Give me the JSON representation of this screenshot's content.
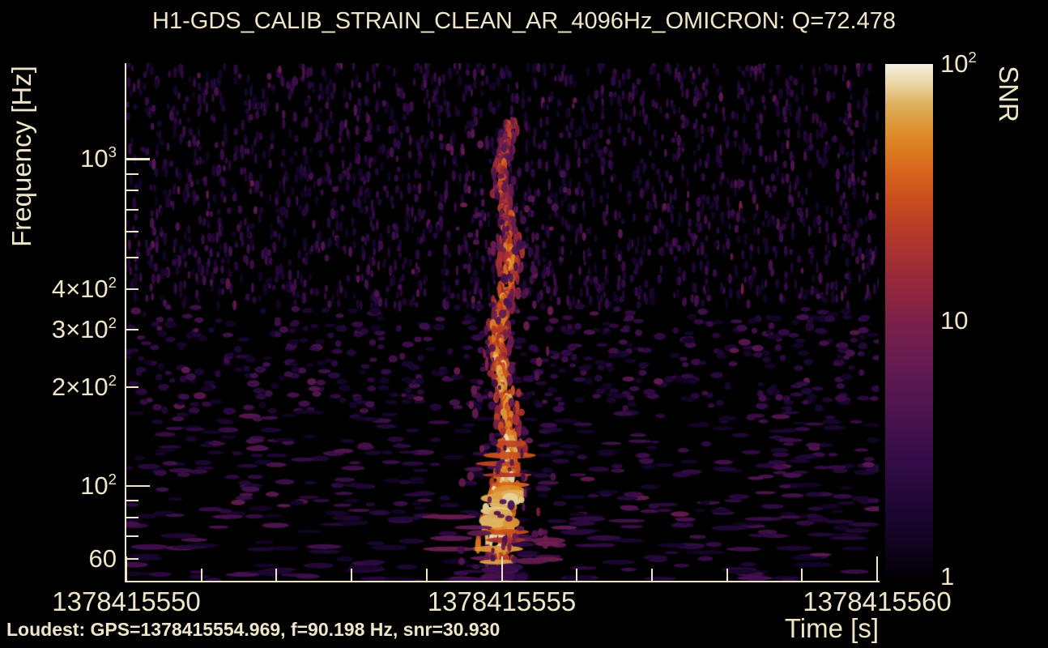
{
  "title": "H1-GDS_CALIB_STRAIN_CLEAN_AR_4096Hz_OMICRON: Q=72.478",
  "colors": {
    "background": "#000000",
    "text": "#efe5c9",
    "axis": "#efe5c9",
    "colorbar_tick": "#000000"
  },
  "axes": {
    "x": {
      "label": "Time [s]",
      "range": [
        1378415550,
        1378415560
      ],
      "major_tick_values": [
        1378415550,
        1378415555,
        1378415560
      ],
      "major_tick_labels": [
        "1378415550",
        "1378415555",
        "1378415560"
      ],
      "minor_tick_step_s": 1
    },
    "y": {
      "label": "Frequency [Hz]",
      "scale": "log",
      "range_hz": [
        51,
        1963
      ],
      "major_ticks": [
        {
          "value": 1000,
          "base": "10",
          "sup": "3"
        },
        {
          "value": 100,
          "base": "10",
          "sup": "2"
        }
      ],
      "labeled_minor_ticks": [
        {
          "value": 400,
          "base": "4×10",
          "sup": "2"
        },
        {
          "value": 300,
          "base": "3×10",
          "sup": "2"
        },
        {
          "value": 200,
          "base": "2×10",
          "sup": "2"
        },
        {
          "value": 60,
          "base": "60",
          "sup": ""
        }
      ],
      "minor_tick_values": [
        900,
        800,
        700,
        600,
        500,
        90,
        80,
        70
      ]
    },
    "colorbar": {
      "label": "SNR",
      "scale": "log",
      "range": [
        1,
        100
      ],
      "tick_labels": [
        {
          "value": 100,
          "base": "10",
          "sup": "2"
        },
        {
          "value": 10,
          "base": "10",
          "sup": ""
        },
        {
          "value": 1,
          "base": "1",
          "sup": ""
        }
      ],
      "major_tick_values": [
        10
      ],
      "minor_tick_values": [
        90,
        80,
        70,
        60,
        50,
        40,
        30,
        20,
        9,
        8,
        7,
        6,
        5,
        4,
        3,
        2
      ]
    }
  },
  "footer": {
    "loudest_label": "Loudest: GPS=1378415554.969, f=90.198 Hz, snr=30.930"
  },
  "chart_data": {
    "type": "heatmap",
    "subtype": "omicron-q-transform-spectrogram",
    "title": "H1-GDS_CALIB_STRAIN_CLEAN_AR_4096Hz_OMICRON: Q=72.478",
    "channel": "H1-GDS_CALIB_STRAIN_CLEAN_AR_4096Hz_OMICRON",
    "q_value": 72.478,
    "xlabel": "Time [s]",
    "ylabel": "Frequency [Hz]",
    "colorbar_label": "SNR",
    "x_range_gps": [
      1378415550,
      1378415560
    ],
    "y_scale": "log",
    "y_range_hz": [
      51,
      1963
    ],
    "snr_scale": "log",
    "snr_range": [
      1,
      100
    ],
    "legend_position": "right-colorbar",
    "grid": false,
    "loudest": {
      "gps": 1378415554.969,
      "frequency_hz": 90.198,
      "snr": 30.93
    },
    "features": [
      {
        "name": "glitch-track",
        "time_gps": 1378415555.0,
        "freq_span_hz": [
          51,
          1300
        ],
        "peak_freq_hz": 90.198,
        "peak_snr": 30.93,
        "description": "bright vertical chirp-like track, brightest (SNR~30) near 60-100 Hz, narrowing and fading toward ~1.3 kHz"
      },
      {
        "name": "background-noise",
        "snr_range": [
          1,
          5
        ],
        "description": "dark purple speckled background; speckles short/vertical at high frequency, elongated/horizontal at low frequency"
      }
    ],
    "colormap_stops": [
      "#050008",
      "#2d0a42",
      "#611a52",
      "#7c2149",
      "#b1372b",
      "#d96a1c",
      "#de8a26",
      "#ddb05c",
      "#f5f0e2"
    ]
  }
}
